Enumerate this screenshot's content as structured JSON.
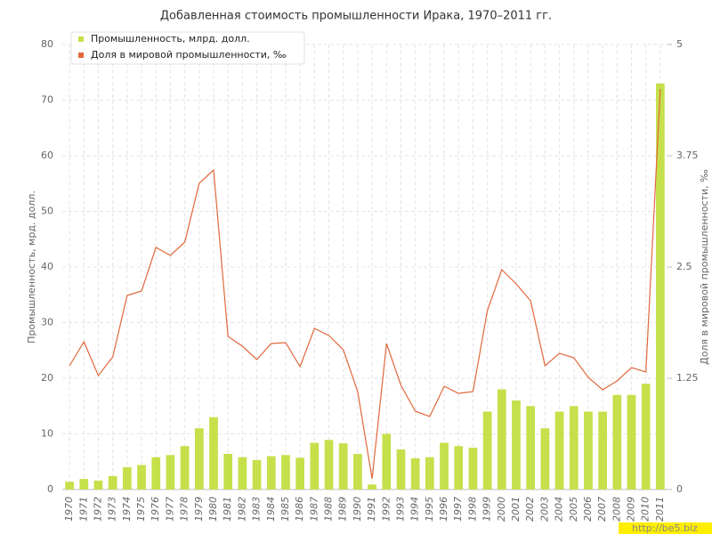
{
  "chart_data": {
    "type": "bar-line",
    "title": "Добавленная стоимость промышленности Ирака, 1970–2011 гг.",
    "y_label": "Промышленность, мрд. долл.",
    "y2_label": "Доля в мировой промышленности, ‰",
    "watermark": "http://be5.biz",
    "categories": [
      "1970",
      "1971",
      "1972",
      "1973",
      "1974",
      "1975",
      "1976",
      "1977",
      "1978",
      "1979",
      "1980",
      "1981",
      "1982",
      "1983",
      "1984",
      "1985",
      "1986",
      "1987",
      "1988",
      "1989",
      "1990",
      "1991",
      "1992",
      "1993",
      "1994",
      "1995",
      "1996",
      "1997",
      "1998",
      "1999",
      "2000",
      "2001",
      "2002",
      "2003",
      "2004",
      "2005",
      "2006",
      "2007",
      "2008",
      "2009",
      "2010",
      "2011"
    ],
    "series": [
      {
        "name": "Промышленность, млрд. долл.",
        "color": "#c5e04a",
        "kind": "bar",
        "values": [
          1.4,
          1.9,
          1.6,
          2.4,
          4,
          4.4,
          5.8,
          6.2,
          7.8,
          11,
          13,
          6.4,
          5.8,
          5.3,
          6,
          6.2,
          5.7,
          8.4,
          8.9,
          8.3,
          6.4,
          0.9,
          10,
          7.2,
          5.6,
          5.8,
          8.4,
          7.8,
          7.5,
          14,
          18,
          16,
          15,
          11,
          14,
          15,
          14,
          14,
          17,
          17,
          19,
          73
        ]
      },
      {
        "name": "Доля в мировой промышленности, ‰",
        "color": "#e0683c",
        "kind": "line",
        "axis": "y2",
        "values": [
          1.39,
          1.66,
          1.28,
          1.49,
          2.18,
          2.23,
          2.72,
          2.63,
          2.78,
          3.44,
          3.59,
          1.72,
          1.61,
          1.46,
          1.64,
          1.65,
          1.38,
          1.81,
          1.73,
          1.57,
          1.1,
          0.12,
          1.64,
          1.17,
          0.88,
          0.82,
          1.16,
          1.08,
          1.1,
          2.01,
          2.47,
          2.31,
          2.12,
          1.39,
          1.53,
          1.48,
          1.26,
          1.12,
          1.22,
          1.37,
          1.32,
          4.5
        ]
      }
    ],
    "ylim": [
      0,
      80
    ],
    "yticks": [
      0,
      10,
      20,
      30,
      40,
      50,
      60,
      70,
      80
    ],
    "y2lim": [
      0,
      5
    ],
    "y2ticks": [
      0,
      1.25,
      2.5,
      3.75,
      5
    ],
    "grid": true,
    "legend": "top-left"
  }
}
